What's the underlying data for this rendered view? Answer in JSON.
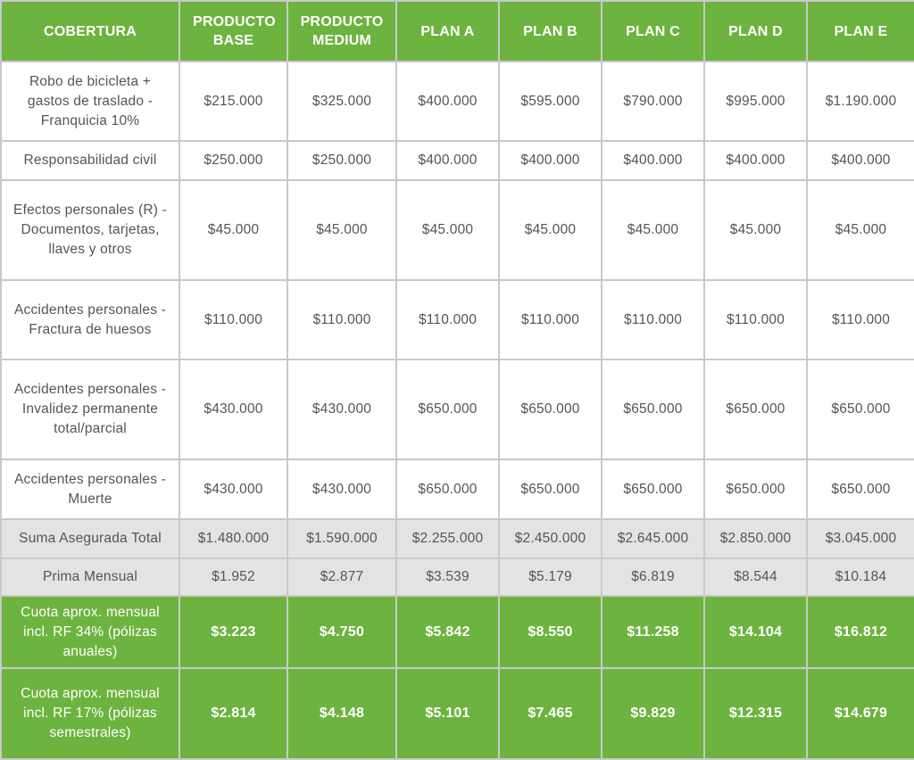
{
  "header": {
    "cobertura": "COBERTURA",
    "plans": [
      "PRODUCTO BASE",
      "PRODUCTO MEDIUM",
      "PLAN A",
      "PLAN B",
      "PLAN C",
      "PLAN D",
      "PLAN E"
    ]
  },
  "rows": [
    {
      "label": "Robo de bicicleta + gastos de traslado - Franquicia 10%",
      "values": [
        "$215.000",
        "$325.000",
        "$400.000",
        "$595.000",
        "$790.000",
        "$995.000",
        "$1.190.000"
      ]
    },
    {
      "label": "Responsabilidad civil",
      "values": [
        "$250.000",
        "$250.000",
        "$400.000",
        "$400.000",
        "$400.000",
        "$400.000",
        "$400.000"
      ]
    },
    {
      "label": "Efectos personales (R) - Documentos, tarjetas, llaves y otros",
      "values": [
        "$45.000",
        "$45.000",
        "$45.000",
        "$45.000",
        "$45.000",
        "$45.000",
        "$45.000"
      ]
    },
    {
      "label": "Accidentes personales - Fractura de huesos",
      "values": [
        "$110.000",
        "$110.000",
        "$110.000",
        "$110.000",
        "$110.000",
        "$110.000",
        "$110.000"
      ]
    },
    {
      "label": "Accidentes personales - Invalidez permanente total/parcial",
      "values": [
        "$430.000",
        "$430.000",
        "$650.000",
        "$650.000",
        "$650.000",
        "$650.000",
        "$650.000"
      ]
    },
    {
      "label": "Accidentes personales - Muerte",
      "values": [
        "$430.000",
        "$430.000",
        "$650.000",
        "$650.000",
        "$650.000",
        "$650.000",
        "$650.000"
      ]
    }
  ],
  "totals": [
    {
      "label": "Suma Asegurada Total",
      "values": [
        "$1.480.000",
        "$1.590.000",
        "$2.255.000",
        "$2.450.000",
        "$2.645.000",
        "$2.850.000",
        "$3.045.000"
      ]
    },
    {
      "label": "Prima Mensual",
      "values": [
        "$1.952",
        "$2.877",
        "$3.539",
        "$5.179",
        "$6.819",
        "$8.544",
        "$10.184"
      ]
    }
  ],
  "quotas": [
    {
      "label": "Cuota aprox. mensual incl. RF 34% (pólizas anuales)",
      "values": [
        "$3.223",
        "$4.750",
        "$5.842",
        "$8.550",
        "$11.258",
        "$14.104",
        "$16.812"
      ]
    },
    {
      "label": "Cuota aprox. mensual incl. RF 17% (pólizas semestrales)",
      "values": [
        "$2.814",
        "$4.148",
        "$5.101",
        "$7.465",
        "$9.829",
        "$12.315",
        "$14.679"
      ]
    }
  ],
  "colors": {
    "header_green": "#6db33f",
    "total_gray": "#e3e3e3",
    "border": "#c9c9c9",
    "text": "#555555"
  }
}
